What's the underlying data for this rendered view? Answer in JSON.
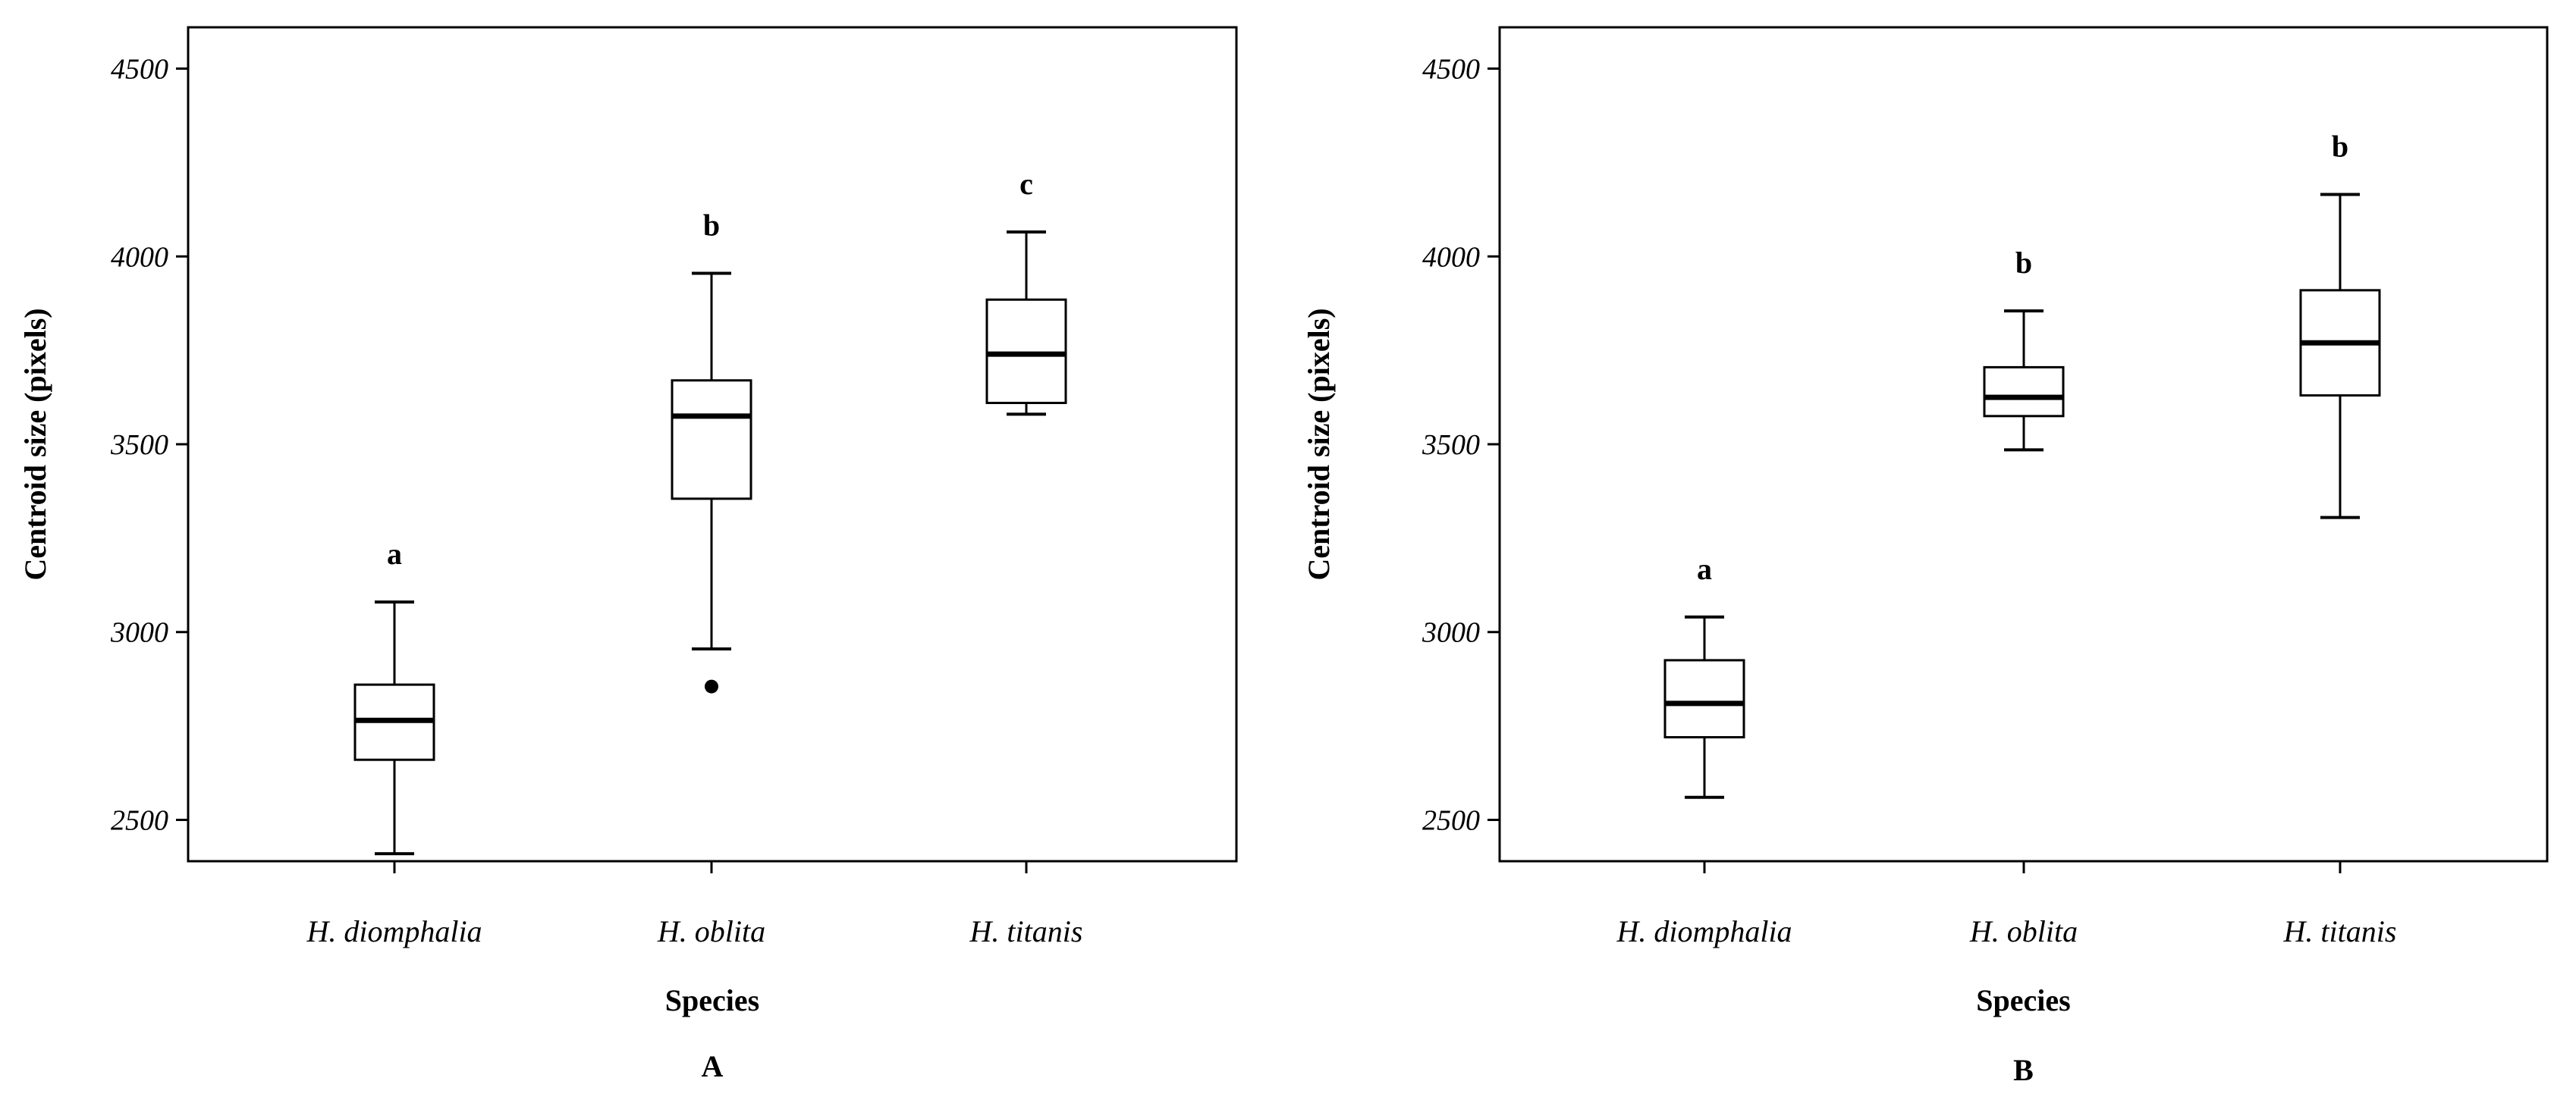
{
  "chart_data": [
    {
      "type": "box",
      "panel_label": "A",
      "xlabel": "Species",
      "ylabel": "Centroid size (pixels)",
      "ylim": [
        2390,
        4610
      ],
      "yticks": [
        2500,
        3000,
        3500,
        4000,
        4500
      ],
      "yticks_labels": [
        "2500",
        "3000",
        "3500",
        "4000",
        "4500"
      ],
      "categories": [
        "H. diomphalia",
        "H. oblita",
        "H. titanis"
      ],
      "boxes": [
        {
          "category": "H. diomphalia",
          "min": 2410,
          "q1": 2660,
          "median": 2765,
          "q3": 2860,
          "max": 3080,
          "outliers": [],
          "letter": "a"
        },
        {
          "category": "H. oblita",
          "min": 2955,
          "q1": 3355,
          "median": 3575,
          "q3": 3670,
          "max": 3955,
          "outliers": [
            2855
          ],
          "letter": "b"
        },
        {
          "category": "H. titanis",
          "min": 3580,
          "q1": 3610,
          "median": 3740,
          "q3": 3885,
          "max": 4065,
          "outliers": [],
          "letter": "c"
        }
      ]
    },
    {
      "type": "box",
      "panel_label": "B",
      "xlabel": "Species",
      "ylabel": "Centroid size (pixels)",
      "ylim": [
        2390,
        4610
      ],
      "yticks": [
        2500,
        3000,
        3500,
        4000,
        4500
      ],
      "yticks_labels": [
        "2500",
        "3000",
        "3500",
        "4000",
        "4500"
      ],
      "categories": [
        "H. diomphalia",
        "H. oblita",
        "H. titanis"
      ],
      "boxes": [
        {
          "category": "H. diomphalia",
          "min": 2560,
          "q1": 2720,
          "median": 2810,
          "q3": 2925,
          "max": 3040,
          "outliers": [],
          "letter": "a"
        },
        {
          "category": "H. oblita",
          "min": 3485,
          "q1": 3575,
          "median": 3625,
          "q3": 3705,
          "max": 3855,
          "outliers": [],
          "letter": "b"
        },
        {
          "category": "H. titanis",
          "min": 3305,
          "q1": 3630,
          "median": 3770,
          "q3": 3910,
          "max": 4165,
          "outliers": [],
          "letter": "b"
        }
      ]
    }
  ]
}
